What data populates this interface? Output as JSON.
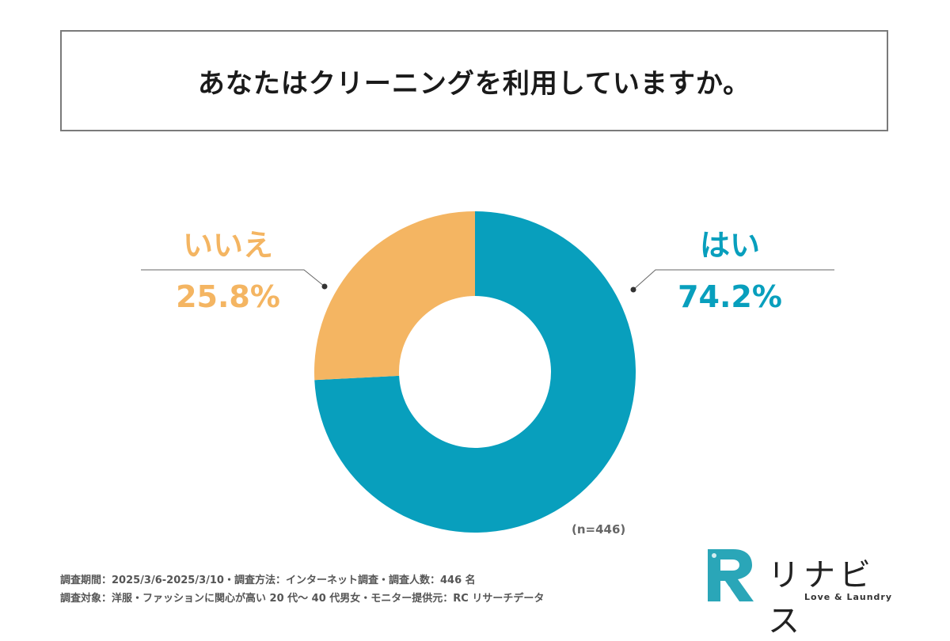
{
  "title": "あなたはクリーニングを利用していますか。",
  "chart_data": {
    "type": "pie",
    "donut": true,
    "categories": [
      "はい",
      "いいえ"
    ],
    "values": [
      74.2,
      25.8
    ],
    "value_labels": [
      "74.2%",
      "25.8%"
    ],
    "colors": [
      "#089fbd",
      "#f4b562"
    ],
    "legend": "none",
    "note": "(n=446)"
  },
  "notes": [
    "調査期間：2025/3/6-2025/3/10・調査方法：インターネット調査・調査人数：446 名",
    "調査対象：洋服・ファッションに関心が高い 20 代〜 40 代男女・モニター提供元：RC リサーチデータ"
  ],
  "logo": {
    "name": "リナビス",
    "tagline": "Love & Laundry",
    "colors": [
      "#2aa6b8",
      "#0f6f86"
    ]
  }
}
